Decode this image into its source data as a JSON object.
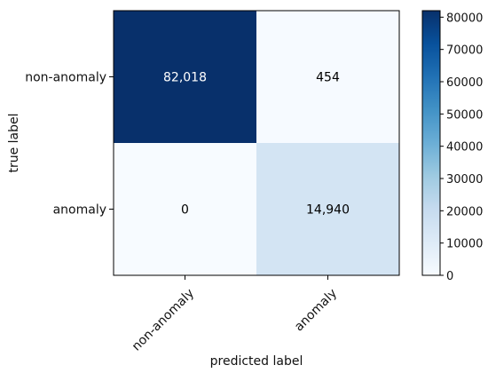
{
  "chart_data": {
    "type": "heatmap",
    "title": "",
    "xlabel": "predicted label",
    "ylabel": "true label",
    "x_categories": [
      "non-anomaly",
      "anomaly"
    ],
    "y_categories": [
      "non-anomaly",
      "anomaly"
    ],
    "values": [
      [
        82018,
        454
      ],
      [
        0,
        14940
      ]
    ],
    "cell_labels": [
      [
        "82,018",
        "454"
      ],
      [
        "0",
        "14,940"
      ]
    ],
    "colormap": "Blues",
    "color_range": [
      0,
      82018
    ],
    "colorbar": {
      "range": [
        0,
        82018
      ],
      "ticks": [
        0,
        10000,
        20000,
        30000,
        40000,
        50000,
        60000,
        70000,
        80000
      ],
      "tick_labels": [
        "0",
        "10000",
        "20000",
        "30000",
        "40000",
        "50000",
        "60000",
        "70000",
        "80000"
      ]
    },
    "grid": false
  }
}
